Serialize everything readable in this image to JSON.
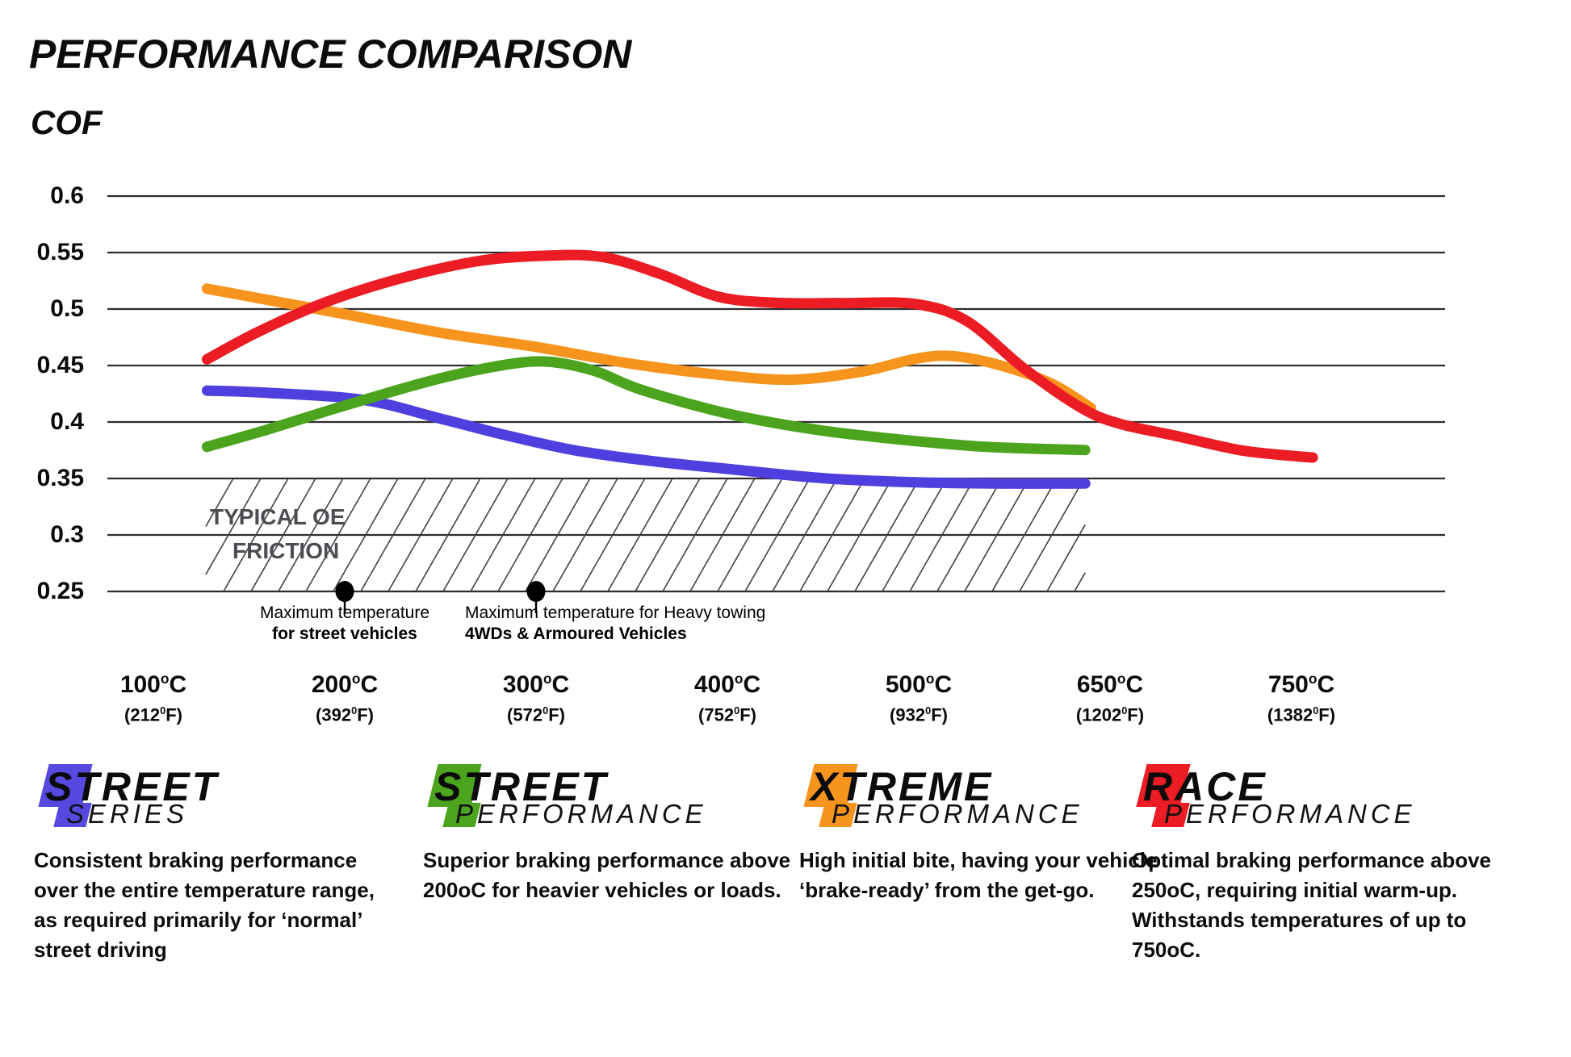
{
  "title": "PERFORMANCE COMPARISON",
  "chart_data": {
    "type": "line",
    "title": "PERFORMANCE COMPARISON",
    "ylabel": "COF",
    "ylim": [
      0.25,
      0.6
    ],
    "grid": true,
    "ytick_labels": [
      "0.6",
      "0.55",
      "0.5",
      "0.45",
      "0.4",
      "0.35",
      "0.3",
      "0.25"
    ],
    "yticks": [
      0.6,
      0.55,
      0.5,
      0.45,
      0.4,
      0.35,
      0.3,
      0.25
    ],
    "categories": [
      {
        "celsius": "100",
        "fahrenheit": "212"
      },
      {
        "celsius": "200",
        "fahrenheit": "392"
      },
      {
        "celsius": "300",
        "fahrenheit": "572"
      },
      {
        "celsius": "400",
        "fahrenheit": "752"
      },
      {
        "celsius": "500",
        "fahrenheit": "932"
      },
      {
        "celsius": "650",
        "fahrenheit": "1202"
      },
      {
        "celsius": "750",
        "fahrenheit": "1382"
      }
    ],
    "series": [
      {
        "name": "Street Series",
        "color": "#4F3FDE",
        "points": [
          [
            0.28,
            0.4278
          ],
          [
            0.6,
            0.4258
          ],
          [
            1.1,
            0.4195
          ],
          [
            1.5,
            0.403
          ],
          [
            1.85,
            0.388
          ],
          [
            2.2,
            0.375
          ],
          [
            2.6,
            0.3655
          ],
          [
            3.0,
            0.3585
          ],
          [
            3.5,
            0.3503
          ],
          [
            3.95,
            0.3468
          ],
          [
            4.4,
            0.3456
          ],
          [
            4.87,
            0.3455
          ]
        ]
      },
      {
        "name": "Street Performance",
        "color": "#4CA41E",
        "points": [
          [
            0.28,
            0.378
          ],
          [
            0.6,
            0.3935
          ],
          [
            1.0,
            0.4145
          ],
          [
            1.45,
            0.4365
          ],
          [
            1.8,
            0.4495
          ],
          [
            2.05,
            0.4535
          ],
          [
            2.3,
            0.4455
          ],
          [
            2.55,
            0.4285
          ],
          [
            3.0,
            0.4075
          ],
          [
            3.45,
            0.3935
          ],
          [
            3.9,
            0.3845
          ],
          [
            4.35,
            0.378
          ],
          [
            4.87,
            0.3752
          ]
        ]
      },
      {
        "name": "Xtreme Performance",
        "color": "#F7941D",
        "points": [
          [
            0.28,
            0.518
          ],
          [
            0.6,
            0.508
          ],
          [
            1.0,
            0.4955
          ],
          [
            1.5,
            0.479
          ],
          [
            2.0,
            0.4665
          ],
          [
            2.5,
            0.4515
          ],
          [
            3.0,
            0.441
          ],
          [
            3.35,
            0.4375
          ],
          [
            3.7,
            0.4445
          ],
          [
            4.0,
            0.4565
          ],
          [
            4.2,
            0.458
          ],
          [
            4.45,
            0.449
          ],
          [
            4.7,
            0.4335
          ],
          [
            4.9,
            0.4125
          ]
        ]
      },
      {
        "name": "Race Performance",
        "color": "#EC1C24",
        "points": [
          [
            0.28,
            0.4555
          ],
          [
            0.55,
            0.48
          ],
          [
            0.9,
            0.506
          ],
          [
            1.3,
            0.5275
          ],
          [
            1.7,
            0.5425
          ],
          [
            2.05,
            0.5472
          ],
          [
            2.35,
            0.546
          ],
          [
            2.65,
            0.531
          ],
          [
            2.95,
            0.511
          ],
          [
            3.25,
            0.5055
          ],
          [
            3.6,
            0.5052
          ],
          [
            3.98,
            0.5045
          ],
          [
            4.25,
            0.4895
          ],
          [
            4.55,
            0.4475
          ],
          [
            4.85,
            0.4125
          ],
          [
            5.05,
            0.3985
          ],
          [
            5.35,
            0.3875
          ],
          [
            5.7,
            0.3745
          ],
          [
            6.06,
            0.3685
          ]
        ]
      }
    ],
    "oe_band": {
      "label_line1": "TYPICAL OE",
      "label_line2": "FRICTION",
      "value_range": [
        0.25,
        0.35
      ],
      "tick_range": [
        0.274,
        4.87
      ]
    },
    "annotations": [
      {
        "tick": 1,
        "line1": "Maximum temperature",
        "line2": "for street vehicles"
      },
      {
        "tick": 2,
        "line1": "Maximum temperature for Heavy towing",
        "line2": "4WDs & Armoured Vehicles"
      }
    ]
  },
  "legend": {
    "items": [
      {
        "word1": "STREET",
        "word2": "SERIES",
        "color": "#5649E0",
        "description": "Consistent braking performance over the entire temperature range, as required primarily for ‘normal’ street driving"
      },
      {
        "word1": "STREET",
        "word2": "PERFORMANCE",
        "color": "#4CA41E",
        "description": "Superior braking performance above 200oC for heavier vehicles or loads."
      },
      {
        "word1": "XTREME",
        "word2": "PERFORMANCE",
        "color": "#F7941D",
        "description": "High initial bite, having your vehicle ‘brake-ready’ from the get-go."
      },
      {
        "word1": "RACE",
        "word2": "PERFORMANCE",
        "color": "#EC1C24",
        "description": "Optimal braking performance above 250oC, requiring initial warm-up. Withstands temperatures of up to 750oC."
      }
    ]
  }
}
